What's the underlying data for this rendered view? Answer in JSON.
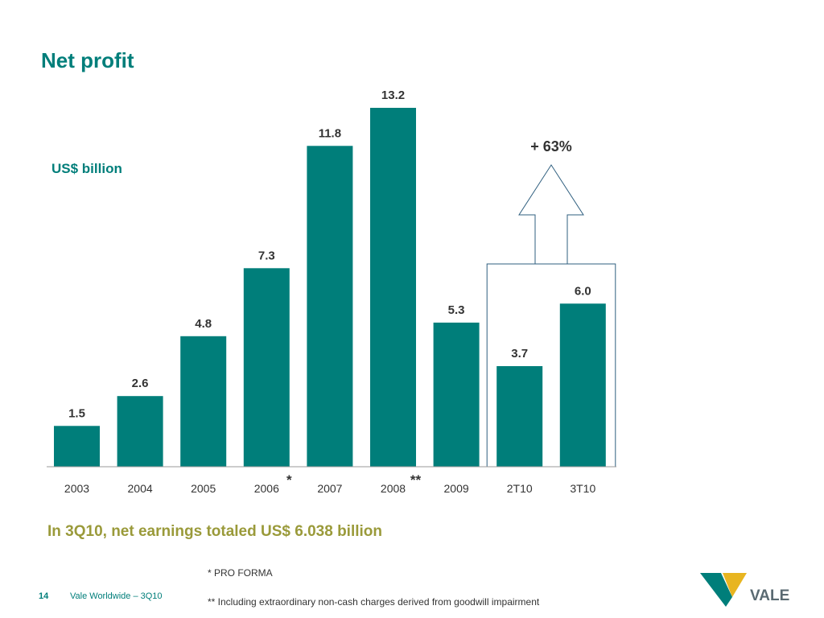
{
  "page": {
    "title": "Net profit",
    "headline": "In 3Q10, net earnings totaled US$ 6.038 billion",
    "footnote_pro_forma": "* PRO FORMA",
    "footnote_charges": "** Including extraordinary non-cash charges derived from goodwill impairment",
    "page_number": "14",
    "footer_text": "Vale Worldwide – 3Q10",
    "logo_text": "VALE"
  },
  "colors": {
    "bar": "#007e7a",
    "title": "#007e7a",
    "headline": "#9a9a3a",
    "highlight_outline": "#2f5f7f",
    "logo_yellow": "#e8b520",
    "logo_teal": "#007e7a",
    "logo_text": "#5a6a72"
  },
  "chart_data": {
    "type": "bar",
    "categories": [
      "2003",
      "2004",
      "2005",
      "2006",
      "2007",
      "2008",
      "2009",
      "2T10",
      "3T10"
    ],
    "values": [
      1.5,
      2.6,
      4.8,
      7.3,
      11.8,
      13.2,
      5.3,
      3.7,
      6.0
    ],
    "value_labels": [
      "1.5",
      "2.6",
      "4.8",
      "7.3",
      "11.8",
      "13.2",
      "5.3",
      "3.7",
      "6.0"
    ],
    "category_markers": [
      "",
      "",
      "",
      "*",
      "",
      "**",
      "",
      "",
      ""
    ],
    "title": "Net profit",
    "ylabel": "US$ billion",
    "ylim": [
      0,
      13.2
    ],
    "grid": false,
    "highlight": {
      "categories": [
        "2T10",
        "3T10"
      ],
      "label": "+ 63%"
    }
  }
}
